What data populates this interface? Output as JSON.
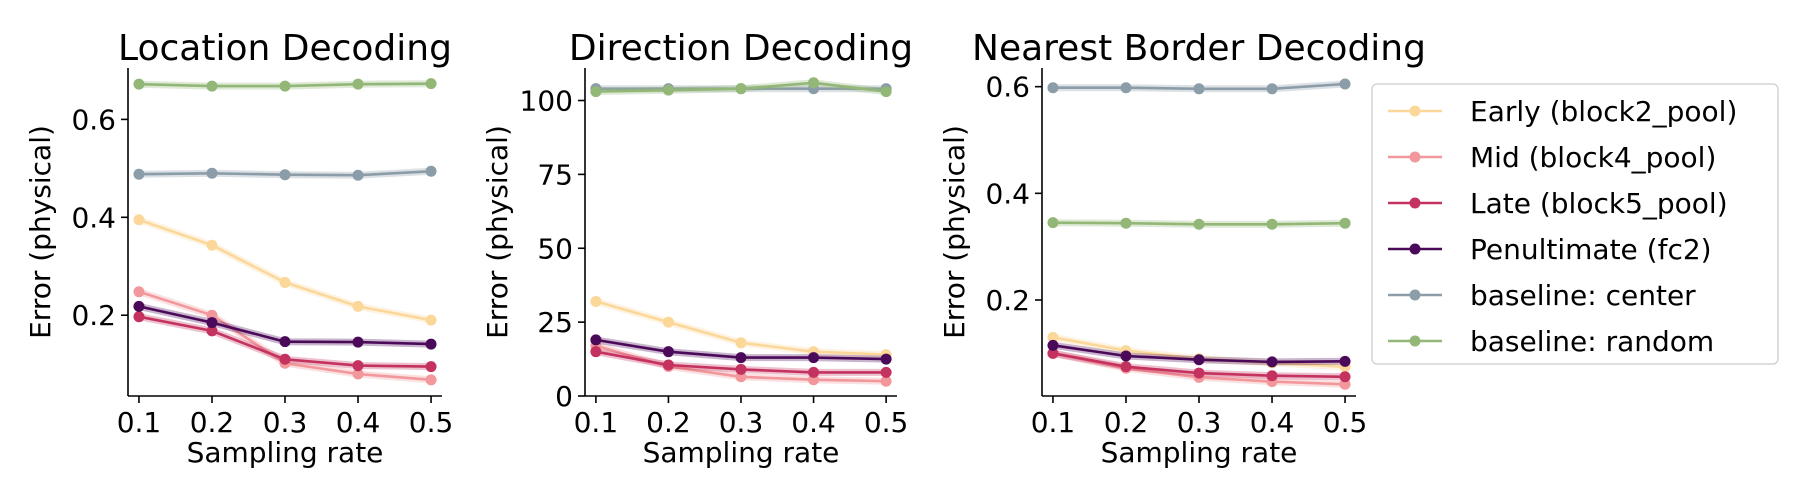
{
  "chart_data": [
    {
      "type": "line",
      "title": "Location Decoding",
      "xlabel": "Sampling rate",
      "ylabel": "Error (physical)",
      "x": [
        0.1,
        0.2,
        0.3,
        0.4,
        0.5
      ],
      "xticks": [
        "0.1",
        "0.2",
        "0.3",
        "0.4",
        "0.5"
      ],
      "ylim": [
        0.035,
        0.705
      ],
      "yticks": [
        {
          "value": 0.2,
          "label": "0.2"
        },
        {
          "value": 0.4,
          "label": "0.4"
        },
        {
          "value": 0.6,
          "label": "0.6"
        }
      ],
      "series": [
        {
          "name": "Early (block2_pool)",
          "values": [
            0.395,
            0.343,
            0.267,
            0.218,
            0.19
          ]
        },
        {
          "name": "Mid (block4_pool)",
          "values": [
            0.248,
            0.2,
            0.102,
            0.08,
            0.068
          ]
        },
        {
          "name": "Late (block5_pool)",
          "values": [
            0.197,
            0.168,
            0.11,
            0.097,
            0.095
          ]
        },
        {
          "name": "Penultimate (fc2)",
          "values": [
            0.218,
            0.185,
            0.146,
            0.145,
            0.141
          ]
        },
        {
          "name": "baseline: center",
          "values": [
            0.488,
            0.49,
            0.487,
            0.486,
            0.494
          ]
        },
        {
          "name": "baseline: random",
          "values": [
            0.672,
            0.668,
            0.668,
            0.672,
            0.673
          ]
        }
      ]
    },
    {
      "type": "line",
      "title": "Direction Decoding",
      "xlabel": "Sampling rate",
      "ylabel": "Error (physical)",
      "x": [
        0.1,
        0.2,
        0.3,
        0.4,
        0.5
      ],
      "xticks": [
        "0.1",
        "0.2",
        "0.3",
        "0.4",
        "0.5"
      ],
      "ylim": [
        0,
        111
      ],
      "yticks": [
        {
          "value": 0,
          "label": "0"
        },
        {
          "value": 25,
          "label": "25"
        },
        {
          "value": 50,
          "label": "50"
        },
        {
          "value": 75,
          "label": "75"
        },
        {
          "value": 100,
          "label": "100"
        }
      ],
      "series": [
        {
          "name": "Early (block2_pool)",
          "values": [
            32,
            25,
            18,
            15,
            14
          ]
        },
        {
          "name": "Mid (block4_pool)",
          "values": [
            17,
            10,
            6.5,
            5.5,
            5
          ]
        },
        {
          "name": "Late (block5_pool)",
          "values": [
            15,
            10.5,
            9,
            8,
            8
          ]
        },
        {
          "name": "Penultimate (fc2)",
          "values": [
            19,
            15,
            13,
            13,
            12.5
          ]
        },
        {
          "name": "baseline: center",
          "values": [
            104,
            104,
            104,
            104,
            104
          ]
        },
        {
          "name": "baseline: random",
          "values": [
            103,
            103.5,
            104,
            106,
            103
          ]
        }
      ]
    },
    {
      "type": "line",
      "title": "Nearest Border Decoding",
      "xlabel": "Sampling rate",
      "ylabel": "Error (physical)",
      "x": [
        0.1,
        0.2,
        0.3,
        0.4,
        0.5
      ],
      "xticks": [
        "0.1",
        "0.2",
        "0.3",
        "0.4",
        "0.5"
      ],
      "ylim": [
        0.02,
        0.635
      ],
      "yticks": [
        {
          "value": 0.2,
          "label": "0.2"
        },
        {
          "value": 0.4,
          "label": "0.4"
        },
        {
          "value": 0.6,
          "label": "0.6"
        }
      ],
      "series": [
        {
          "name": "Early (block2_pool)",
          "values": [
            0.13,
            0.105,
            0.09,
            0.082,
            0.075
          ]
        },
        {
          "name": "Mid (block4_pool)",
          "values": [
            0.1,
            0.072,
            0.055,
            0.047,
            0.042
          ]
        },
        {
          "name": "Late (block5_pool)",
          "values": [
            0.1,
            0.075,
            0.063,
            0.058,
            0.056
          ]
        },
        {
          "name": "Penultimate (fc2)",
          "values": [
            0.115,
            0.095,
            0.088,
            0.084,
            0.085
          ]
        },
        {
          "name": "baseline: center",
          "values": [
            0.598,
            0.598,
            0.596,
            0.596,
            0.605
          ]
        },
        {
          "name": "baseline: random",
          "values": [
            0.345,
            0.344,
            0.342,
            0.342,
            0.344
          ]
        }
      ]
    }
  ],
  "legend": {
    "placement": "right",
    "entries": [
      {
        "label": "Early (block2_pool)",
        "color": "#fbd89a"
      },
      {
        "label": "Mid (block4_pool)",
        "color": "#f2979b"
      },
      {
        "label": "Late (block5_pool)",
        "color": "#c4335f"
      },
      {
        "label": "Penultimate (fc2)",
        "color": "#4b0a59"
      },
      {
        "label": "baseline: center",
        "color": "#8b9da8"
      },
      {
        "label": "baseline: random",
        "color": "#93b776"
      }
    ]
  },
  "colors": {
    "Early (block2_pool)": "#fbd89a",
    "Mid (block4_pool)": "#f2979b",
    "Late (block5_pool)": "#c4335f",
    "Penultimate (fc2)": "#4b0a59",
    "baseline: center": "#8b9da8",
    "baseline: random": "#93b776"
  }
}
